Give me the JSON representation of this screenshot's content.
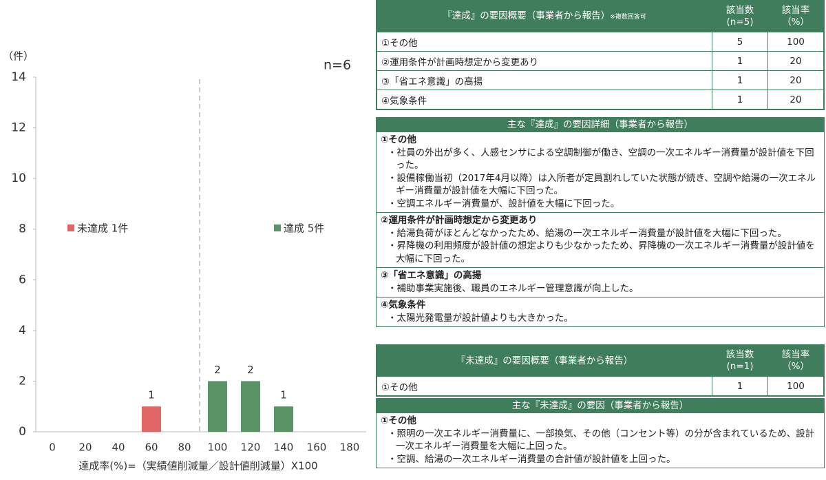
{
  "chart_data": {
    "type": "bar",
    "y_unit_label": "（件）",
    "annotation": "n=6",
    "xlabel": "達成率(%)=（実績値削減量／設計値削減量）X100",
    "categories": [
      "0",
      "20",
      "40",
      "60",
      "80",
      "100",
      "120",
      "140",
      "160",
      "180"
    ],
    "series": [
      {
        "name": "未達成 1件",
        "color": "#e06666",
        "values": [
          null,
          null,
          null,
          1,
          null,
          null,
          null,
          null,
          null,
          null
        ]
      },
      {
        "name": "達成 5件",
        "color": "#5a9466",
        "values": [
          null,
          null,
          null,
          null,
          null,
          2,
          2,
          1,
          null,
          null
        ]
      }
    ],
    "ylim": [
      0,
      14
    ],
    "yticks": [
      0,
      2,
      4,
      6,
      8,
      10,
      12,
      14
    ],
    "grid": false
  },
  "achieved_summary": {
    "header": {
      "title": "『達成』の要因概要（事業者から報告）",
      "note": "※複数回答可",
      "count": "該当数\n(n=5)",
      "rate": "該当率\n（%）"
    },
    "rows": [
      [
        "①その他",
        5,
        100
      ],
      [
        "②運用条件が計画時想定から変更あり",
        1,
        20
      ],
      [
        "③「省エネ意識」の高揚",
        1,
        20
      ],
      [
        "④気象条件",
        1,
        20
      ]
    ]
  },
  "achieved_details": {
    "title": "主な『達成』の要因詳細（事業者から報告）",
    "sections": [
      {
        "heading": "①その他",
        "items": [
          "・社員の外出が多く、人感センサによる空調制御が働き、空調の一次エネルギー消費量が設計値を下回った。",
          "・設備稼働当初（2017年4月以降）は入所者が定員割れしていた状態が続き、空調や給湯の一次エネルギー消費量が設計値を大幅に下回った。",
          "・空調エネルギー消費量が、設計値を大幅に下回った。"
        ]
      },
      {
        "heading": "②運用条件が計画時想定から変更あり",
        "items": [
          "・給湯負荷がほとんどなかったため、給湯の一次エネルギー消費量が設計値を大幅に下回った。",
          "・昇降機の利用頻度が設計値の想定よりも少なかったため、昇降機の一次エネルギー消費量が設計値を大幅に下回った。"
        ]
      },
      {
        "heading": "③「省エネ意識」の高揚",
        "items": [
          "・補助事業実施後、職員のエネルギー管理意識が向上した。"
        ]
      },
      {
        "heading": "④気象条件",
        "items": [
          "・太陽光発電量が設計値よりも大きかった。"
        ]
      }
    ]
  },
  "unachieved_summary": {
    "header": {
      "title": "『未達成』の要因概要（事業者から報告）",
      "count": "該当数\n(n=1)",
      "rate": "該当率\n（%）"
    },
    "rows": [
      [
        "①その他",
        1,
        100
      ]
    ]
  },
  "unachieved_details": {
    "title": "主な『未達成』の要因（事業者から報告）",
    "sections": [
      {
        "heading": "①その他",
        "items": [
          "・照明の一次エネルギー消費量に、一部換気、その他（コンセント等）の分が含まれているため、設計一次エネルギー消費量を大幅に上回った。",
          "・空調、給湯の一次エネルギー消費量の合計値が設計値を上回った。"
        ]
      }
    ]
  }
}
